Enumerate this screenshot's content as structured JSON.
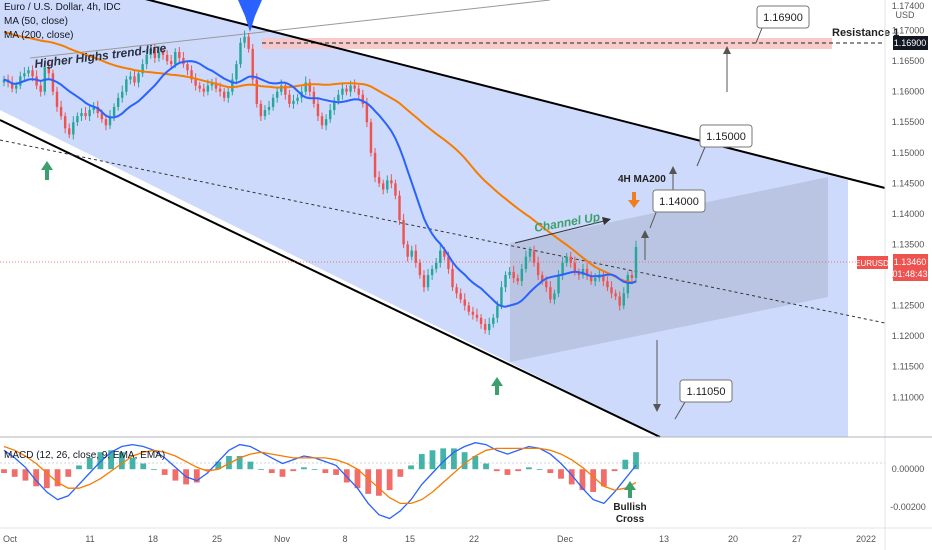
{
  "header": {
    "symbol_line": "Euro / U.S. Dollar, 4h, IDC",
    "ma50_label": "MA (50, close)",
    "ma200_label": "MA (200, close)",
    "currency": "USD"
  },
  "macd_label": "MACD (12, 26, close, 9, EMA, EMA)",
  "annotations": {
    "higher_highs": "Higher Highs trend-line",
    "channel_up": "Channel Up",
    "ma200_4h": "4H MA200",
    "resistance": "Resistance 1",
    "bullish_cross": "Bullish Cross",
    "price_tag_symbol": "EURUSD",
    "price_tag_value": "1.13460",
    "countdown": "01:48:43",
    "resistance_tag": "1.16900"
  },
  "colors": {
    "candle_up": "#26a69a",
    "candle_down": "#ef5350",
    "ma50": "#2962ff",
    "ma200": "#f57c00",
    "channel_fill": "#c9d6fb",
    "arrow_green": "#3c9f6d",
    "arrow_orange": "#ef7d22",
    "resistance_zone": "#f8c4c4"
  },
  "chart_data": [
    {
      "type": "line",
      "title": "Euro / U.S. Dollar, 4h, IDC",
      "ylim": [
        1.1035,
        1.175
      ],
      "price_ticks": [
        "1.17400",
        "1.17000",
        "1.16500",
        "1.16000",
        "1.15500",
        "1.15000",
        "1.14500",
        "1.14000",
        "1.13500",
        "1.13000",
        "1.12500",
        "1.12000",
        "1.11500",
        "1.11000"
      ],
      "x_ticks": [
        "Oct",
        "11",
        "18",
        "25",
        "Nov",
        "8",
        "15",
        "22",
        "Dec",
        "13",
        "20",
        "27",
        "2022"
      ],
      "current_price": 1.1346,
      "resistance_level": 1.169,
      "targets": [
        "1.16900",
        "1.15000",
        "1.14000",
        "1.11050"
      ],
      "series": [
        {
          "name": "EURUSD",
          "values": [
            1.162,
            1.1615,
            1.1605,
            1.161,
            1.1625,
            1.163,
            1.1635,
            1.1625,
            1.161,
            1.16,
            1.164,
            1.163,
            1.16,
            1.1575,
            1.156,
            1.154,
            1.153,
            1.155,
            1.156,
            1.1565,
            1.156,
            1.157,
            1.1575,
            1.1565,
            1.1555,
            1.1545,
            1.156,
            1.1575,
            1.159,
            1.16,
            1.162,
            1.1625,
            1.1615,
            1.163,
            1.1645,
            1.166,
            1.167,
            1.1655,
            1.1665,
            1.166,
            1.165,
            1.1645,
            1.1665,
            1.1655,
            1.1645,
            1.1635,
            1.162,
            1.161,
            1.1605,
            1.16,
            1.161,
            1.1615,
            1.1605,
            1.16,
            1.159,
            1.16,
            1.162,
            1.1645,
            1.168,
            1.169,
            1.167,
            1.162,
            1.158,
            1.156,
            1.157,
            1.1575,
            1.159,
            1.16,
            1.161,
            1.1595,
            1.158,
            1.1585,
            1.159,
            1.16,
            1.1615,
            1.16,
            1.158,
            1.156,
            1.1545,
            1.1555,
            1.157,
            1.1585,
            1.1595,
            1.1605,
            1.16,
            1.161,
            1.1605,
            1.1595,
            1.158,
            1.155,
            1.15,
            1.146,
            1.145,
            1.144,
            1.1455,
            1.145,
            1.143,
            1.139,
            1.135,
            1.133,
            1.134,
            1.132,
            1.13,
            1.128,
            1.13,
            1.131,
            1.132,
            1.134,
            1.133,
            1.131,
            1.128,
            1.127,
            1.126,
            1.125,
            1.124,
            1.1235,
            1.123,
            1.122,
            1.121,
            1.122,
            1.123,
            1.125,
            1.128,
            1.13,
            1.1305,
            1.1295,
            1.129,
            1.131,
            1.133,
            1.134,
            1.132,
            1.13,
            1.129,
            1.128,
            1.126,
            1.127,
            1.13,
            1.132,
            1.133,
            1.132,
            1.1305,
            1.13,
            1.131,
            1.13,
            1.129,
            1.1295,
            1.13,
            1.129,
            1.128,
            1.127,
            1.1265,
            1.125,
            1.127,
            1.13,
            1.1295,
            1.1346
          ]
        }
      ]
    },
    {
      "type": "line",
      "title": "MACD (12, 26, close, 9, EMA, EMA)",
      "ylim": [
        -0.0031,
        0.0017
      ],
      "y_ticks": [
        "0.00000",
        "-0.00200"
      ],
      "series": [
        {
          "name": "MACD",
          "values": [
            0.001,
            0.0006,
            0.0001,
            -0.0006,
            -0.0012,
            -0.0016,
            -0.0014,
            -0.0008,
            -0.0002,
            0.0004,
            0.0009,
            0.0012,
            0.0013,
            0.0012,
            0.001,
            0.0006,
            0.0001,
            -0.0004,
            -0.0006,
            -0.0002,
            0.0004,
            0.001,
            0.0013,
            0.0012,
            0.0009,
            0.0006,
            0.0003,
            0.0005,
            0.0007,
            0.0006,
            0.0004,
            0.0002,
            -0.0004,
            -0.001,
            -0.0018,
            -0.0024,
            -0.0026,
            -0.0022,
            -0.0016,
            -0.0008,
            -0.0002,
            0.0004,
            0.0009,
            0.0012,
            0.0014,
            0.0013,
            0.001,
            0.0008,
            0.001,
            0.0012,
            0.0011,
            0.0008,
            0.0003,
            -0.0003,
            -0.001,
            -0.0016,
            -0.0018,
            -0.0012,
            -0.0005,
            0.0002
          ]
        },
        {
          "name": "Signal",
          "values": [
            0.0012,
            0.001,
            0.0007,
            0.0003,
            -0.0002,
            -0.0007,
            -0.001,
            -0.001,
            -0.0008,
            -0.0005,
            -0.0001,
            0.0003,
            0.0007,
            0.0009,
            0.001,
            0.0009,
            0.0007,
            0.0004,
            0.0001,
            -0.0001,
            0.0,
            0.0003,
            0.0006,
            0.0008,
            0.0009,
            0.0008,
            0.0007,
            0.0006,
            0.0006,
            0.0006,
            0.0006,
            0.0005,
            0.0003,
            0.0,
            -0.0005,
            -0.001,
            -0.0015,
            -0.0018,
            -0.0018,
            -0.0016,
            -0.0012,
            -0.0007,
            -0.0002,
            0.0003,
            0.0007,
            0.001,
            0.0011,
            0.0011,
            0.0011,
            0.0011,
            0.0011,
            0.001,
            0.0008,
            0.0005,
            0.0001,
            -0.0004,
            -0.0009,
            -0.0011,
            -0.001,
            -0.0007
          ]
        }
      ]
    }
  ]
}
